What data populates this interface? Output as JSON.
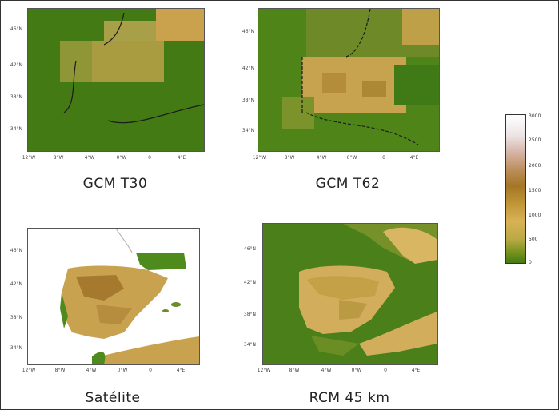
{
  "panels": [
    {
      "id": "gcm-t30",
      "caption": "GCM T30",
      "yticks": [
        "46°N",
        "42°N",
        "38°N",
        "34°N"
      ],
      "xticks": [
        "12°W",
        "8°W",
        "4°W",
        "0°W",
        "0",
        "4°E"
      ]
    },
    {
      "id": "gcm-t62",
      "caption": "GCM T62",
      "yticks": [
        "46°N",
        "42°N",
        "38°N",
        "34°N"
      ],
      "xticks": [
        "12°W",
        "8°W",
        "4°W",
        "0°W",
        "0",
        "4°E"
      ]
    },
    {
      "id": "satelite",
      "caption": "Satélite",
      "yticks": [
        "46°N",
        "42°N",
        "38°N",
        "34°N"
      ],
      "xticks": [
        "12°W",
        "8°W",
        "4°W",
        "0°W",
        "0",
        "4°E"
      ]
    },
    {
      "id": "rcm-45km",
      "caption": "RCM 45 km",
      "yticks": [
        "46°N",
        "42°N",
        "38°N",
        "34°N"
      ],
      "xticks": [
        "12°W",
        "8°W",
        "4°W",
        "0°W",
        "0",
        "4°E"
      ]
    }
  ],
  "legend": {
    "ticks": [
      "3000",
      "2500",
      "2000",
      "1500",
      "1000",
      "500",
      "0"
    ],
    "colors": {
      "low": "#437a14",
      "mid_low": "#b9a944",
      "mid": "#d9b256",
      "mid_high": "#a57625",
      "high": "#d7b5a8",
      "top": "#ffffff"
    }
  }
}
